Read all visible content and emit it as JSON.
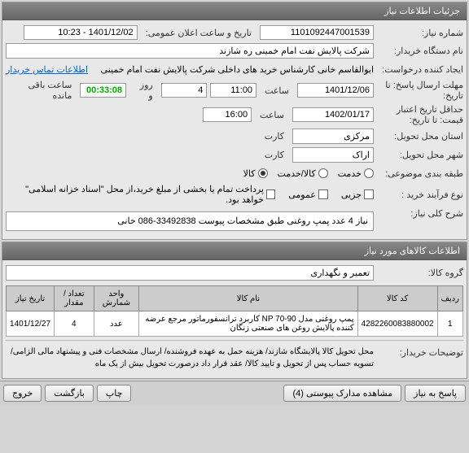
{
  "panel1_title": "جزئیات اطلاعات نیاز",
  "fields": {
    "need_number_label": "شماره نیاز:",
    "need_number": "1101092447001539",
    "announce_label": "تاریخ و ساعت اعلان عمومی:",
    "announce_value": "1401/12/02 - 10:23",
    "buyer_label": "نام دستگاه خریدار:",
    "buyer_value": "شرکت پالایش نفت امام خمینی ره شازند",
    "creator_label": "ایجاد کننده درخواست:",
    "creator_value": "ابوالقاسم خانی کارشناس خرید های داخلی شرکت پالایش نفت امام خمینی",
    "creator_link": "اطلاعات تماس خریدار",
    "reply_deadline_label": "مهلت ارسال پاسخ: تا تاریخ:",
    "reply_deadline_date": "1401/12/06",
    "time_label": "ساعت",
    "reply_deadline_time": "11:00",
    "day_label": "روز و",
    "days_remain": "4",
    "timer": "00:33:08",
    "remain_label": "ساعت باقی مانده",
    "validity_label": "حداقل تاریخ اعتبار قیمت: تا تاریخ:",
    "validity_date": "1402/01/17",
    "validity_time": "16:00",
    "province_label": "استان محل تحویل:",
    "province_value": "مرکزی",
    "city_label": "شهر محل تحویل:",
    "city_value": "اراک",
    "card_label": "کارت",
    "budget_label": "طبقه بندی موضوعی:",
    "radio_service": "خدمت",
    "radio_goods_service": "کالا/خدمت",
    "radio_goods": "کالا",
    "buy_process_label": "نوع فرآیند خرید :",
    "chk_partial": "جزیی",
    "chk_group": "عمومی",
    "chk_full_text": "پرداخت تمام یا بخشی از مبلغ خرید،از محل \"اسناد خزانه اسلامی\" خواهد بود."
  },
  "desc_label": "شرح کلی نیاز:",
  "desc_value": "نیاز 4 عدد پمپ روغنی طبق مشخصات پیوست 33492838-086 خانی",
  "panel2_title": "اطلاعات کالاهای مورد نیاز",
  "group_label": "گروه کالا:",
  "group_value": "تعمیر و نگهداری",
  "table": {
    "columns": [
      "ردیف",
      "کد کالا",
      "نام کالا",
      "واحد شمارش",
      "تعداد / مقدار",
      "تاریخ نیاز"
    ],
    "rows": [
      [
        "1",
        "4282260083880002",
        "پمپ روغنی مدل NP 70-90 کاربرد ترانسفورماتور مرجع عرضه کننده پالایش روغن های صنعتی زنگان",
        "عدد",
        "4",
        "1401/12/27"
      ]
    ]
  },
  "explain_label": "توضیحات خریدار:",
  "explain_text": "محل تحویل کالا پالایشگاه شازند/ هزینه حمل به عهده فروشنده/ ارسال مشخصات فنی و پیشنهاد مالی الزامی/ تسویه حساب پس از تحویل و تایید کالا/ عقد قرار داد درصورت تحویل بیش از یک ماه",
  "footer": {
    "reply_btn": "پاسخ به نیاز",
    "attach_btn": "مشاهده مدارک پیوستی (4)",
    "print_btn": "چاپ",
    "back_btn": "بازگشت",
    "exit_btn": "خروج"
  }
}
